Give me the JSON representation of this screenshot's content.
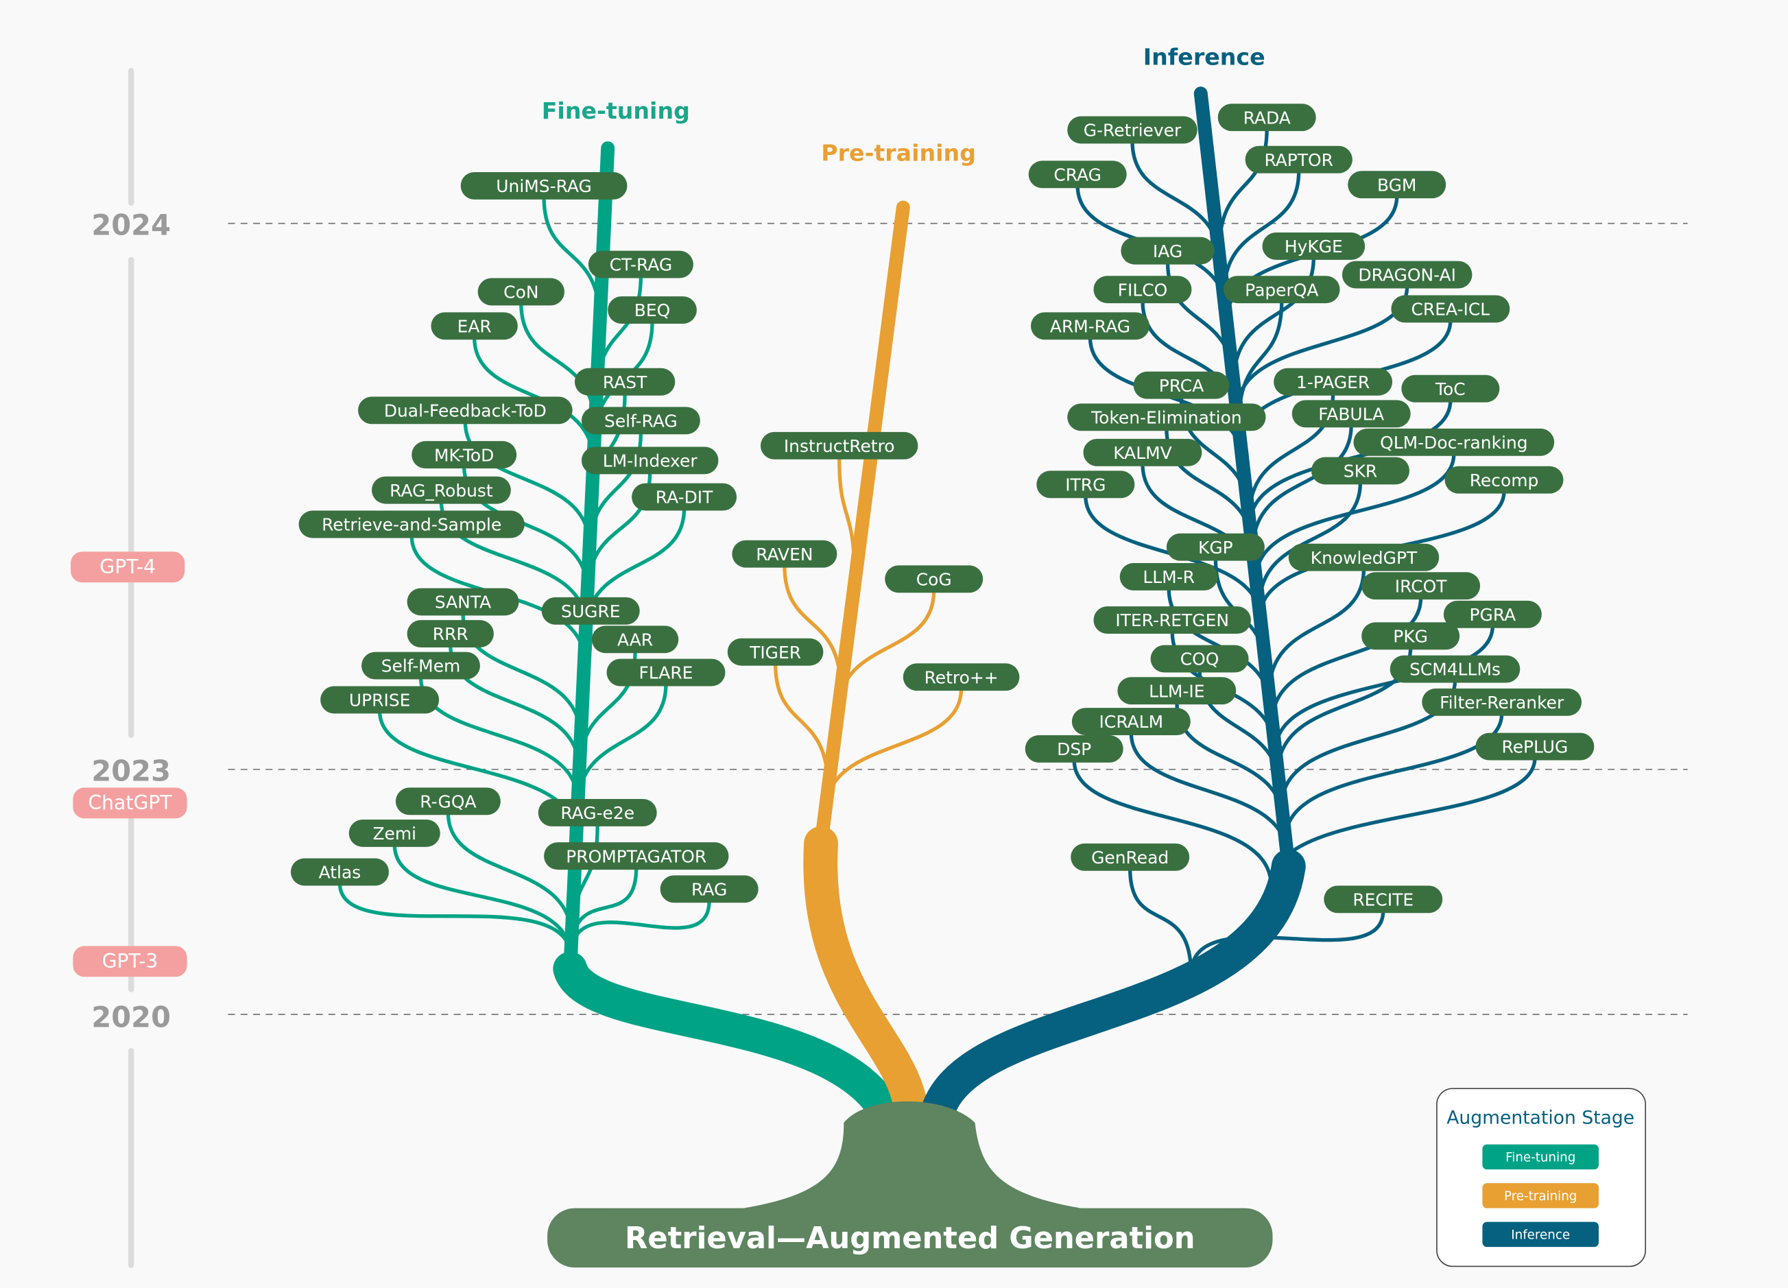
{
  "root_label": "Retrieval—Augmented Generation",
  "timeline": {
    "years": [
      "2024",
      "2023",
      "2020"
    ],
    "models": [
      "GPT-4",
      "ChatGPT",
      "GPT-3"
    ]
  },
  "branches": {
    "fine_tuning": {
      "title": "Fine-tuning",
      "color": "#00a386",
      "nodes": [
        "UniMS-RAG",
        "CT-RAG",
        "CoN",
        "BEQ",
        "EAR",
        "RAST",
        "Dual-Feedback-ToD",
        "Self-RAG",
        "MK-ToD",
        "LM-Indexer",
        "RAG_Robust",
        "RA-DIT",
        "Retrieve-and-Sample",
        "SANTA",
        "SUGRE",
        "RRR",
        "AAR",
        "Self-Mem",
        "FLARE",
        "UPRISE",
        "R-GQA",
        "RAG-e2e",
        "Zemi",
        "PROMPTAGATOR",
        "Atlas",
        "RAG"
      ]
    },
    "pre_training": {
      "title": "Pre-training",
      "color": "#e8a033",
      "nodes": [
        "InstructRetro",
        "RAVEN",
        "CoG",
        "TIGER",
        "Retro++"
      ]
    },
    "inference": {
      "title": "Inference",
      "color": "#06607f",
      "nodes": [
        "G-Retriever",
        "RADA",
        "CRAG",
        "RAPTOR",
        "BGM",
        "IAG",
        "HyKGE",
        "FILCO",
        "PaperQA",
        "DRAGON-AI",
        "CREA-ICL",
        "ARM-RAG",
        "PRCA",
        "1-PAGER",
        "ToC",
        "Token-Elimination",
        "FABULA",
        "QLM-Doc-ranking",
        "KALMV",
        "SKR",
        "ITRG",
        "Recomp",
        "KGP",
        "KnowledGPT",
        "LLM-R",
        "IRCOT",
        "ITER-RETGEN",
        "PGRA",
        "PKG",
        "COQ",
        "SCM4LLMs",
        "LLM-IE",
        "Filter-Reranker",
        "ICRALM",
        "RePLUG",
        "DSP",
        "GenRead",
        "RECITE"
      ]
    }
  },
  "legend": {
    "title": "Augmentation Stage",
    "items": [
      "Fine-tuning",
      "Pre-training",
      "Inference"
    ]
  },
  "colors": {
    "node": "#3a7040",
    "root": "#5e8460",
    "badge": "#f4a0a0",
    "timeline": "#dcdcdc"
  }
}
